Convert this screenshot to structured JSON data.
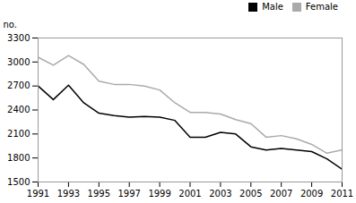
{
  "chart_data": {
    "type": "line",
    "x": [
      1991,
      1992,
      1993,
      1994,
      1995,
      1996,
      1997,
      1998,
      1999,
      2000,
      2001,
      2002,
      2003,
      2004,
      2005,
      2006,
      2007,
      2008,
      2009,
      2010,
      2011
    ],
    "series": [
      {
        "name": "Male",
        "color": "#000000",
        "values": [
          2700,
          2530,
          2710,
          2490,
          2360,
          2330,
          2310,
          2320,
          2310,
          2270,
          2060,
          2060,
          2120,
          2100,
          1940,
          1900,
          1920,
          1900,
          1880,
          1790,
          1660
        ]
      },
      {
        "name": "Female",
        "color": "#aaaaaa",
        "values": [
          3060,
          2960,
          3080,
          2970,
          2760,
          2720,
          2720,
          2700,
          2650,
          2490,
          2370,
          2370,
          2350,
          2280,
          2230,
          2060,
          2080,
          2040,
          1970,
          1860,
          1900
        ]
      }
    ],
    "ylabel": "no.",
    "xlim": [
      1991,
      2011
    ],
    "xticks": [
      1991,
      1993,
      1995,
      1997,
      1999,
      2001,
      2003,
      2005,
      2007,
      2009,
      2011
    ],
    "ylim": [
      1500,
      3300
    ],
    "yticks": [
      1500,
      1800,
      2100,
      2400,
      2700,
      3000,
      3300
    ],
    "grid": false,
    "legend": "upper right"
  }
}
